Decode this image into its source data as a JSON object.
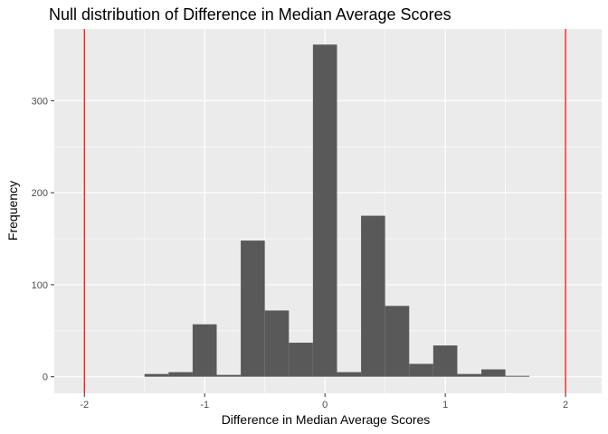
{
  "chart_data": {
    "type": "bar",
    "title": "Null distribution of Difference in Median Average Scores",
    "xlabel": "Difference in Median Average Scores",
    "ylabel": "Frequency",
    "xlim": [
      -2.25,
      2.3
    ],
    "ylim": [
      -18,
      378
    ],
    "x_ticks": [
      -2,
      -1,
      0,
      1,
      2
    ],
    "x_tick_labels": [
      "-2",
      "-1",
      "0",
      "1",
      "2"
    ],
    "y_ticks": [
      0,
      100,
      200,
      300
    ],
    "y_tick_labels": [
      "0",
      "100",
      "200",
      "300"
    ],
    "bin_width": 0.2,
    "bins": [
      {
        "x": -1.4,
        "count": 3
      },
      {
        "x": -1.2,
        "count": 5
      },
      {
        "x": -1.0,
        "count": 57
      },
      {
        "x": -0.8,
        "count": 2
      },
      {
        "x": -0.6,
        "count": 148
      },
      {
        "x": -0.4,
        "count": 72
      },
      {
        "x": -0.2,
        "count": 37
      },
      {
        "x": 0.0,
        "count": 361
      },
      {
        "x": 0.2,
        "count": 5
      },
      {
        "x": 0.4,
        "count": 175
      },
      {
        "x": 0.6,
        "count": 77
      },
      {
        "x": 0.8,
        "count": 14
      },
      {
        "x": 1.0,
        "count": 34
      },
      {
        "x": 1.2,
        "count": 3
      },
      {
        "x": 1.4,
        "count": 8
      },
      {
        "x": 1.6,
        "count": 1
      }
    ],
    "vlines": [
      -2,
      2
    ],
    "colors": {
      "bar": "#595959",
      "vline": "#ff0000",
      "panel": "#ebebeb",
      "grid": "#ffffff"
    },
    "grid": true,
    "legend": "none"
  }
}
